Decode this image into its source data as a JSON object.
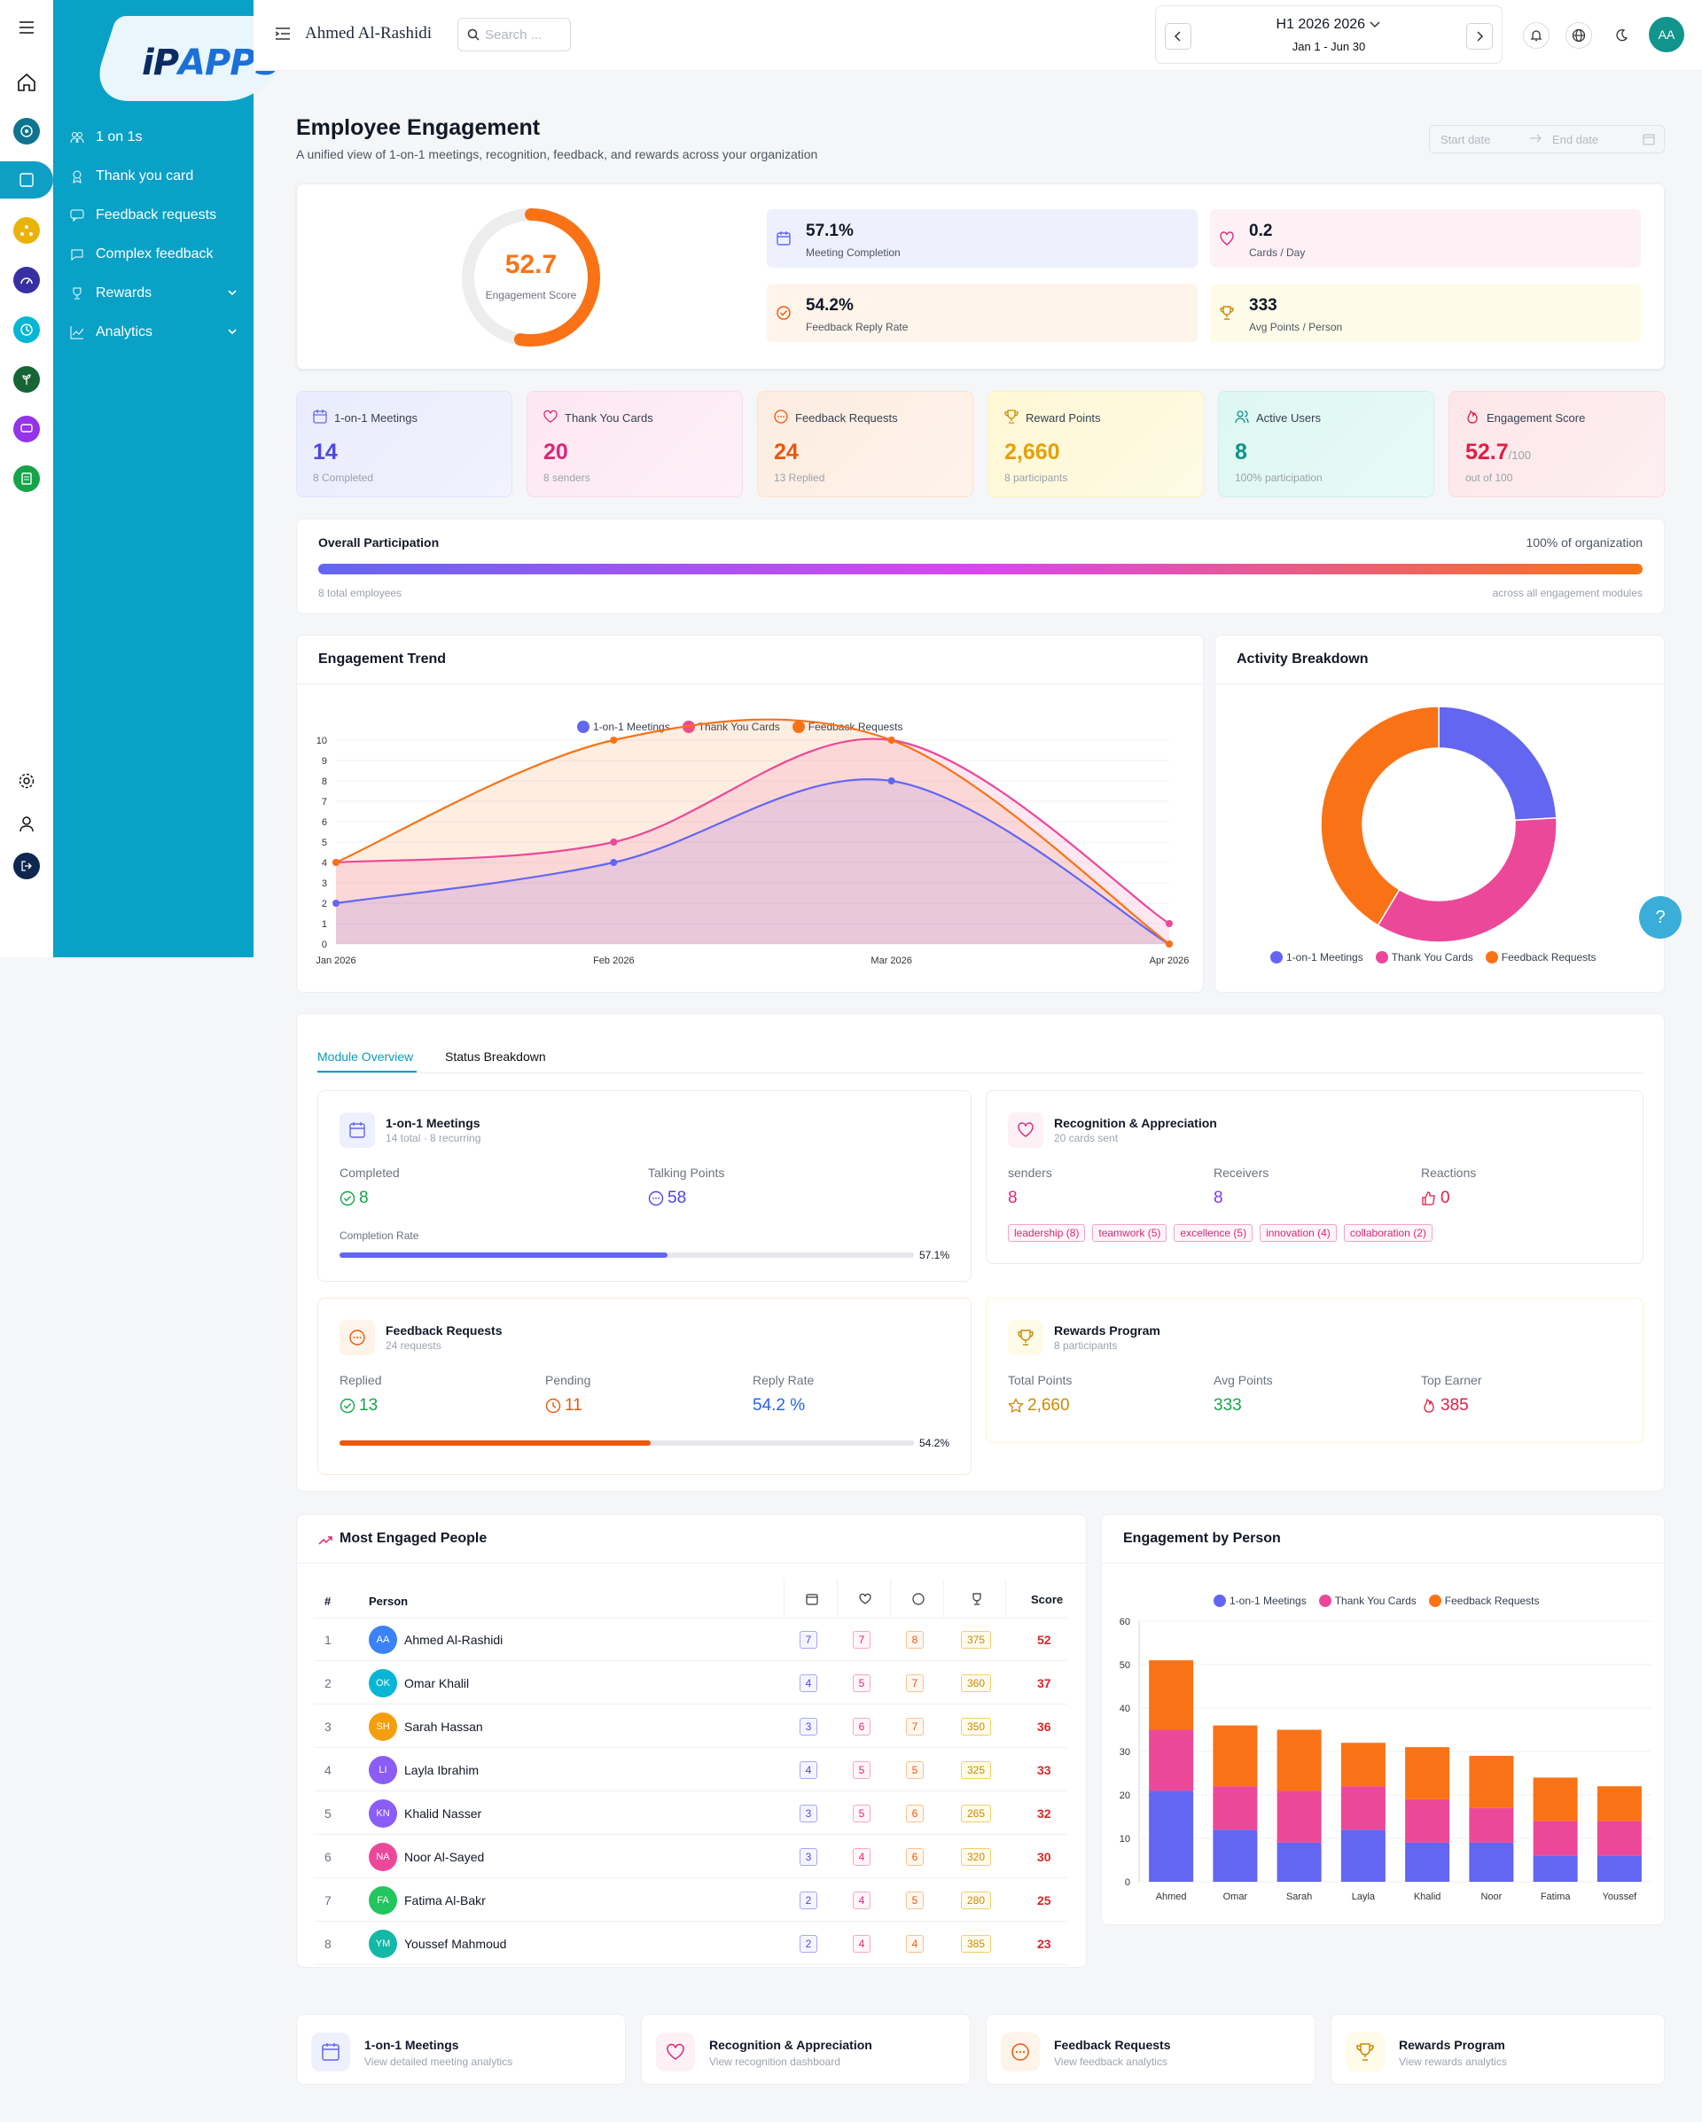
{
  "sidebar": {
    "logo_main": "iP",
    "logo_apps": "APPS",
    "items": [
      {
        "label": "1 on 1s"
      },
      {
        "label": "Thank you card"
      },
      {
        "label": "Feedback requests"
      },
      {
        "label": "Complex feedback"
      },
      {
        "label": "Rewards"
      },
      {
        "label": "Analytics"
      }
    ]
  },
  "header": {
    "user": "Ahmed Al-Rashidi",
    "search_placeholder": "Search ...",
    "period_label": "H1 2026 2026",
    "period_range": "Jan 1 - Jun 30",
    "avatar": "AA"
  },
  "page": {
    "title": "Employee Engagement",
    "subtitle": "A unified view of 1-on-1 meetings, recognition, feedback, and rewards across your organization",
    "start_date": "Start date",
    "end_date": "End date"
  },
  "gauge": {
    "value": "52.7",
    "fraction": 0.527,
    "label": "Engagement Score"
  },
  "summary": [
    {
      "value": "57.1%",
      "label": "Meeting Completion"
    },
    {
      "value": "0.2",
      "label": "Cards / Day"
    },
    {
      "value": "54.2%",
      "label": "Feedback Reply Rate"
    },
    {
      "value": "333",
      "label": "Avg Points / Person"
    }
  ],
  "stats": [
    {
      "label": "1-on-1 Meetings",
      "value": "14",
      "foot": "8 Completed",
      "color": "#4f46e5"
    },
    {
      "label": "Thank You Cards",
      "value": "20",
      "foot": "8 senders",
      "color": "#db2777"
    },
    {
      "label": "Feedback Requests",
      "value": "24",
      "foot": "13 Replied",
      "color": "#ea580c"
    },
    {
      "label": "Reward Points",
      "value": "2,660",
      "foot": "8 participants",
      "color": "#d97706"
    },
    {
      "label": "Active Users",
      "value": "8",
      "foot": "100% participation",
      "color": "#0d9488"
    },
    {
      "label": "Engagement Score",
      "value": "52.7",
      "suffix": "/100",
      "foot": "out of 100",
      "color": "#e11d48"
    }
  ],
  "participation": {
    "title": "Overall Participation",
    "right": "100% of organization",
    "left_foot": "8 total employees",
    "right_foot": "across all engagement modules",
    "fraction": 1.0
  },
  "trend": {
    "title": "Engagement Trend",
    "chart_data": {
      "type": "line",
      "categories": [
        "Jan 2026",
        "Feb 2026",
        "Mar 2026",
        "Apr 2026"
      ],
      "series": [
        {
          "name": "1-on-1 Meetings",
          "color": "#6366f1",
          "values": [
            2,
            4,
            8,
            0
          ]
        },
        {
          "name": "Thank You Cards",
          "color": "#ec4899",
          "values": [
            4,
            5,
            10,
            1
          ]
        },
        {
          "name": "Feedback Requests",
          "color": "#f97316",
          "values": [
            4,
            10,
            10,
            0
          ]
        }
      ],
      "ylim": [
        0,
        10
      ],
      "yticks": [
        "0",
        "1",
        "2",
        "3",
        "4",
        "5",
        "6",
        "7",
        "8",
        "9",
        "10"
      ]
    }
  },
  "breakdown": {
    "title": "Activity Breakdown",
    "chart_data": {
      "type": "pie",
      "labels": [
        "1-on-1 Meetings",
        "Thank You Cards",
        "Feedback Requests"
      ],
      "values": [
        14,
        20,
        24
      ],
      "colors": [
        "#6366f1",
        "#ec4899",
        "#f97316"
      ]
    }
  },
  "tabs": [
    "Module Overview",
    "Status Breakdown"
  ],
  "modules": {
    "meetings": {
      "title": "1-on-1 Meetings",
      "sub": "14 total · 8 recurring",
      "k1": "Completed",
      "v1": "8",
      "k2": "Talking Points",
      "v2": "58",
      "bar_label": "Completion Rate",
      "pct": "57.1%",
      "fraction": 0.571
    },
    "recognition": {
      "title": "Recognition & Appreciation",
      "sub": "20 cards sent",
      "k1": "senders",
      "v1": "8",
      "k2": "Receivers",
      "v2": "8",
      "k3": "Reactions",
      "v3": "0",
      "tags": [
        "leadership (8)",
        "teamwork (5)",
        "excellence (5)",
        "innovation (4)",
        "collaboration (2)"
      ]
    },
    "feedback": {
      "title": "Feedback Requests",
      "sub": "24 requests",
      "k1": "Replied",
      "v1": "13",
      "k2": "Pending",
      "v2": "11",
      "k3": "Reply Rate",
      "v3": "54.2 %",
      "pct": "54.2%",
      "fraction": 0.542
    },
    "rewards": {
      "title": "Rewards Program",
      "sub": "8 participants",
      "k1": "Total Points",
      "v1": "2,660",
      "k2": "Avg Points",
      "v2": "333",
      "k3": "Top Earner",
      "v3": "385"
    }
  },
  "people": {
    "title": "Most Engaged People",
    "headers": {
      "num": "#",
      "person": "Person",
      "score": "Score"
    },
    "rows": [
      {
        "n": "1",
        "ini": "AA",
        "name": "Ahmed Al-Rashidi",
        "color": "#3b82f6",
        "m": "7",
        "c": "7",
        "f": "8",
        "p": "375",
        "s": "52"
      },
      {
        "n": "2",
        "ini": "OK",
        "name": "Omar Khalil",
        "color": "#06b6d4",
        "m": "4",
        "c": "5",
        "f": "7",
        "p": "360",
        "s": "37"
      },
      {
        "n": "3",
        "ini": "SH",
        "name": "Sarah Hassan",
        "color": "#f59e0b",
        "m": "3",
        "c": "6",
        "f": "7",
        "p": "350",
        "s": "36"
      },
      {
        "n": "4",
        "ini": "LI",
        "name": "Layla Ibrahim",
        "color": "#8b5cf6",
        "m": "4",
        "c": "5",
        "f": "5",
        "p": "325",
        "s": "33"
      },
      {
        "n": "5",
        "ini": "KN",
        "name": "Khalid Nasser",
        "color": "#8b5cf6",
        "m": "3",
        "c": "5",
        "f": "6",
        "p": "265",
        "s": "32"
      },
      {
        "n": "6",
        "ini": "NA",
        "name": "Noor Al-Sayed",
        "color": "#ec4899",
        "m": "3",
        "c": "4",
        "f": "6",
        "p": "320",
        "s": "30"
      },
      {
        "n": "7",
        "ini": "FA",
        "name": "Fatima Al-Bakr",
        "color": "#22c55e",
        "m": "2",
        "c": "4",
        "f": "5",
        "p": "280",
        "s": "25"
      },
      {
        "n": "8",
        "ini": "YM",
        "name": "Youssef Mahmoud",
        "color": "#14b8a6",
        "m": "2",
        "c": "4",
        "f": "4",
        "p": "385",
        "s": "23"
      }
    ]
  },
  "byperson": {
    "title": "Engagement by Person",
    "chart_data": {
      "type": "bar",
      "stacked": true,
      "categories": [
        "Ahmed",
        "Omar",
        "Sarah",
        "Layla",
        "Khalid",
        "Noor",
        "Fatima",
        "Youssef"
      ],
      "series": [
        {
          "name": "1-on-1 Meetings",
          "color": "#6366f1",
          "values": [
            21,
            12,
            9,
            12,
            9,
            9,
            6,
            6
          ]
        },
        {
          "name": "Thank You Cards",
          "color": "#ec4899",
          "values": [
            14,
            10,
            12,
            10,
            10,
            8,
            8,
            8
          ]
        },
        {
          "name": "Feedback Requests",
          "color": "#f97316",
          "values": [
            16,
            14,
            14,
            10,
            12,
            12,
            10,
            8
          ]
        }
      ],
      "ylim": [
        0,
        60
      ],
      "yticks": [
        "0",
        "10",
        "20",
        "30",
        "40",
        "50",
        "60"
      ]
    }
  },
  "links": [
    {
      "title": "1-on-1 Meetings",
      "sub": "View detailed meeting analytics"
    },
    {
      "title": "Recognition & Appreciation",
      "sub": "View recognition dashboard"
    },
    {
      "title": "Feedback Requests",
      "sub": "View feedback analytics"
    },
    {
      "title": "Rewards Program",
      "sub": "View rewards analytics"
    }
  ],
  "help": "?"
}
